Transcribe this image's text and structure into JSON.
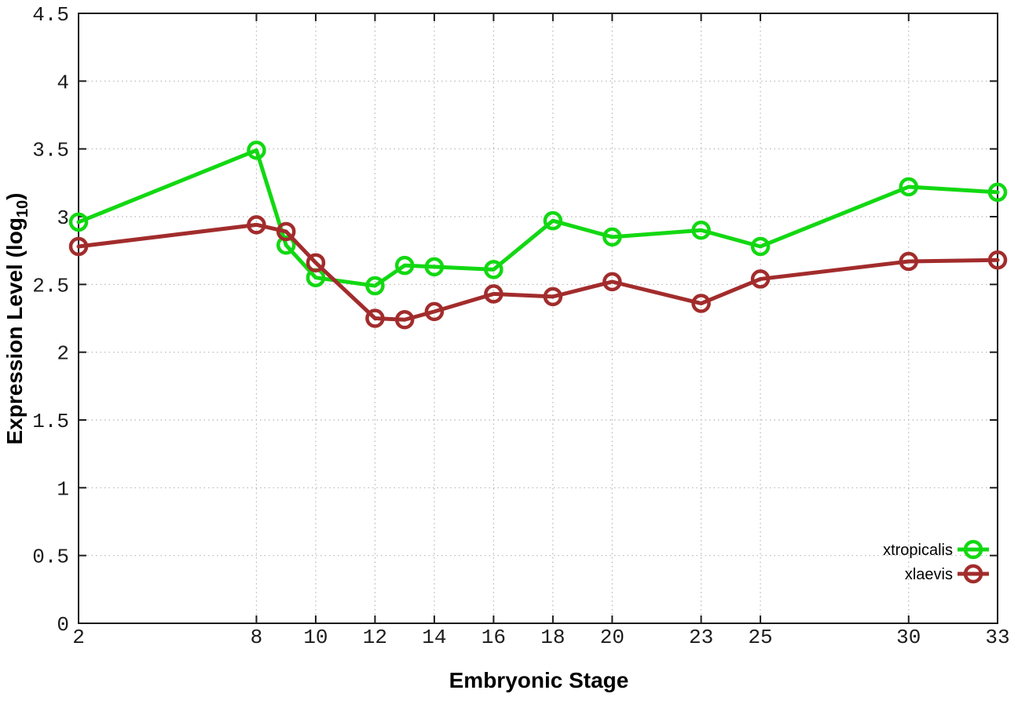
{
  "chart_data": {
    "type": "line",
    "title": "",
    "xlabel": "Embryonic Stage",
    "ylabel": "Expression Level (log10)",
    "ylabel_parts": {
      "main": "Expression Level (log",
      "sub": "10",
      "close": ")"
    },
    "x": [
      2,
      8,
      9,
      10,
      12,
      13,
      14,
      16,
      18,
      20,
      23,
      25,
      30,
      33
    ],
    "series": [
      {
        "name": "xtropicalis",
        "color": "#12d812",
        "values": [
          2.96,
          3.49,
          2.79,
          2.55,
          2.49,
          2.64,
          2.63,
          2.61,
          2.97,
          2.85,
          2.9,
          2.78,
          3.22,
          3.18
        ]
      },
      {
        "name": "xlaevis",
        "color": "#a22c2c",
        "values": [
          2.78,
          2.94,
          2.89,
          2.66,
          2.25,
          2.24,
          2.3,
          2.43,
          2.41,
          2.52,
          2.36,
          2.54,
          2.67,
          2.68
        ]
      }
    ],
    "xlim": [
      2,
      33
    ],
    "ylim": [
      0,
      4.5
    ],
    "xticks": [
      2,
      8,
      10,
      12,
      14,
      16,
      18,
      20,
      23,
      25,
      30,
      33
    ],
    "xtick_labels": [
      "2",
      "8",
      "10",
      "12",
      "14",
      "16",
      "18",
      "20",
      "23",
      "25",
      "30",
      "33"
    ],
    "yticks": [
      0,
      0.5,
      1,
      1.5,
      2,
      2.5,
      3,
      3.5,
      4,
      4.5
    ],
    "ytick_labels": [
      "0",
      "0.5",
      "1",
      "1.5",
      "2",
      "2.5",
      "3",
      "3.5",
      "4",
      "4.5"
    ],
    "grid": "dotted",
    "legend_position": "bottom-right",
    "marker": "open-circle",
    "colors": {
      "grid": "#b5b5b5",
      "axis": "#1c1c1c",
      "text": "#1c1c1c",
      "background": "#ffffff"
    }
  }
}
